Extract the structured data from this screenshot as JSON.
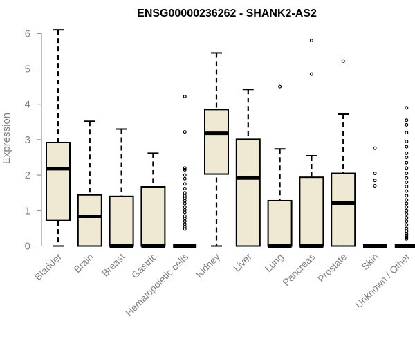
{
  "chart_data": {
    "type": "box",
    "title": "ENSG00000236262 - SHANK2-AS2",
    "xlabel": "",
    "ylabel": "Expression",
    "ylim": [
      0,
      6.2
    ],
    "yticks": [
      "0",
      "1",
      "2",
      "3",
      "4",
      "5",
      "6"
    ],
    "colors": {
      "box_fill": "#efe8d2",
      "stroke": "#000000",
      "axis": "#808080"
    },
    "categories": [
      {
        "name": "Bladder",
        "min": 0,
        "q1": 0.72,
        "median": 2.18,
        "q3": 2.92,
        "max": 6.1,
        "outliers": []
      },
      {
        "name": "Brain",
        "min": 0,
        "q1": 0,
        "median": 0.84,
        "q3": 1.44,
        "max": 3.52,
        "outliers": []
      },
      {
        "name": "Breast",
        "min": 0,
        "q1": 0,
        "median": 0,
        "q3": 1.4,
        "max": 3.3,
        "outliers": []
      },
      {
        "name": "Gastric",
        "min": 0,
        "q1": 0,
        "median": 0,
        "q3": 1.67,
        "max": 2.62,
        "outliers": []
      },
      {
        "name": "Hematopoietic cells",
        "min": 0,
        "q1": 0,
        "median": 0,
        "q3": 0,
        "max": 0,
        "outliers": [
          4.22,
          3.22,
          2.2,
          2.15,
          2.0,
          1.9,
          1.75,
          1.62,
          1.5,
          1.42,
          1.35,
          1.28,
          1.2,
          1.1,
          1.02,
          0.95,
          0.85,
          0.78,
          0.7,
          0.62,
          0.55,
          0.48
        ]
      },
      {
        "name": "Kidney",
        "min": 0,
        "q1": 2.03,
        "median": 3.18,
        "q3": 3.85,
        "max": 5.45,
        "outliers": []
      },
      {
        "name": "Liver",
        "min": 0,
        "q1": 0,
        "median": 1.92,
        "q3": 3.01,
        "max": 4.42,
        "outliers": []
      },
      {
        "name": "Lung",
        "min": 0,
        "q1": 0,
        "median": 0,
        "q3": 1.28,
        "max": 2.74,
        "outliers": [
          4.5
        ]
      },
      {
        "name": "Pancreas",
        "min": 0,
        "q1": 0,
        "median": 0,
        "q3": 1.94,
        "max": 2.55,
        "outliers": [
          5.8,
          4.85
        ]
      },
      {
        "name": "Prostate",
        "min": 0,
        "q1": 0,
        "median": 1.21,
        "q3": 2.05,
        "max": 3.72,
        "outliers": [
          5.22
        ]
      },
      {
        "name": "Skin",
        "min": 0,
        "q1": 0,
        "median": 0,
        "q3": 0,
        "max": 0,
        "outliers": [
          2.76,
          2.05,
          1.85,
          1.7
        ]
      },
      {
        "name": "Unknown / Other",
        "min": 0,
        "q1": 0,
        "median": 0,
        "q3": 0,
        "max": 0,
        "outliers": [
          3.9,
          3.55,
          3.42,
          3.2,
          2.95,
          2.8,
          2.62,
          2.5,
          2.35,
          2.2,
          2.05,
          1.92,
          1.8,
          1.68,
          1.55,
          1.42,
          1.3,
          1.2,
          1.1,
          1.0,
          0.9,
          0.8,
          0.7,
          0.6,
          0.5,
          0.42,
          0.35,
          0.3,
          0.25,
          0.2
        ]
      }
    ]
  }
}
